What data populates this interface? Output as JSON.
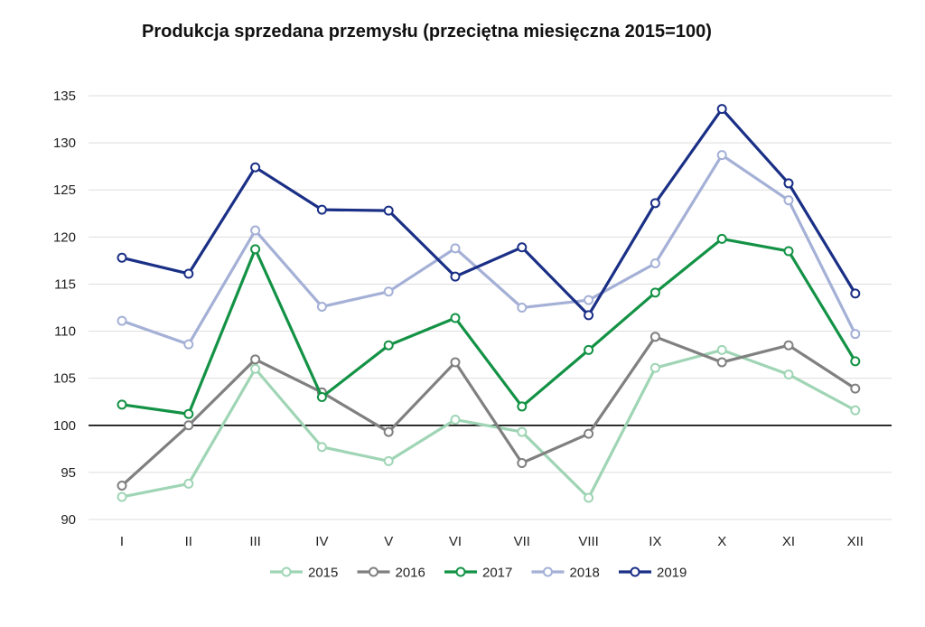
{
  "chart_data": {
    "type": "line",
    "title": "Produkcja sprzedana przemysłu (przeciętna miesięczna 2015=100)",
    "xlabel": "",
    "ylabel": "",
    "categories": [
      "I",
      "II",
      "III",
      "IV",
      "V",
      "VI",
      "VII",
      "VIII",
      "IX",
      "X",
      "XI",
      "XII"
    ],
    "ylim": [
      90,
      135
    ],
    "yticks": [
      90,
      95,
      100,
      105,
      110,
      115,
      120,
      125,
      130,
      135
    ],
    "reference_line": 100,
    "grid": true,
    "legend_position": "bottom",
    "series": [
      {
        "name": "2015",
        "color": "#9fd5b5",
        "values": [
          92.4,
          93.8,
          106.0,
          97.7,
          96.2,
          100.6,
          99.3,
          92.3,
          106.1,
          108.0,
          105.4,
          101.6
        ]
      },
      {
        "name": "2016",
        "color": "#808080",
        "values": [
          93.6,
          100.0,
          107.0,
          103.5,
          99.3,
          106.7,
          96.0,
          99.1,
          109.4,
          106.7,
          108.5,
          103.9
        ]
      },
      {
        "name": "2017",
        "color": "#139245",
        "values": [
          102.2,
          101.2,
          118.7,
          103.0,
          108.5,
          111.4,
          102.0,
          108.0,
          114.1,
          119.8,
          118.5,
          106.8
        ]
      },
      {
        "name": "2018",
        "color": "#a4b0d6",
        "values": [
          111.1,
          108.6,
          120.7,
          112.6,
          114.2,
          118.8,
          112.5,
          113.3,
          117.2,
          128.7,
          123.9,
          109.7
        ]
      },
      {
        "name": "2019",
        "color": "#1a2f86",
        "values": [
          117.8,
          116.1,
          127.4,
          122.9,
          122.8,
          115.8,
          118.9,
          111.7,
          123.6,
          133.6,
          125.7,
          114.0
        ]
      }
    ]
  }
}
